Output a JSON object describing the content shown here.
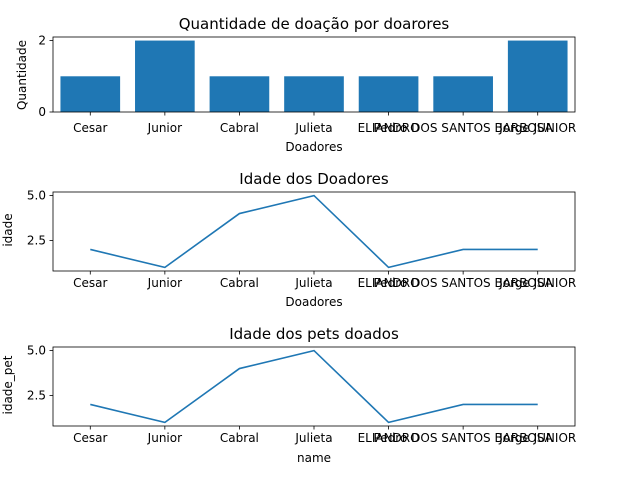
{
  "chart_data": [
    {
      "type": "bar",
      "title": "Quantidade de doação por doarores",
      "xlabel": "Doadores",
      "ylabel": "Quantidade",
      "categories": [
        "Cesar",
        "Junior",
        "Cabral",
        "Julieta",
        "ELIANDRO",
        "Pedro DOS SANTOS BARBOSA",
        "Jorge JUNIOR"
      ],
      "values": [
        1,
        2,
        1,
        1,
        1,
        1,
        2
      ],
      "ylim": [
        0,
        2.1
      ],
      "yticks": [
        "0",
        "2"
      ],
      "color": "#1f77b4",
      "grid": false
    },
    {
      "type": "line",
      "title": "Idade dos Doadores",
      "xlabel": "Doadores",
      "ylabel": "idade",
      "categories": [
        "Cesar",
        "Junior",
        "Cabral",
        "Julieta",
        "ELIANDRO",
        "Pedro DOS SANTOS BARBOSA",
        "Jorge JUNIOR"
      ],
      "values": [
        2,
        1,
        4,
        5,
        1,
        2,
        2
      ],
      "ylim": [
        0.8,
        5.2
      ],
      "yticks": [
        "2.5",
        "5.0"
      ],
      "color": "#1f77b4",
      "grid": false
    },
    {
      "type": "line",
      "title": "Idade dos pets doados",
      "xlabel": "name",
      "ylabel": "idade_pet",
      "categories": [
        "Cesar",
        "Junior",
        "Cabral",
        "Julieta",
        "ELIANDRO",
        "Pedro DOS SANTOS BARBOSA",
        "Jorge JUNIOR"
      ],
      "values": [
        2,
        1,
        4,
        5,
        1,
        2,
        2
      ],
      "ylim": [
        0.8,
        5.2
      ],
      "yticks": [
        "2.5",
        "5.0"
      ],
      "color": "#1f77b4",
      "grid": false
    }
  ]
}
